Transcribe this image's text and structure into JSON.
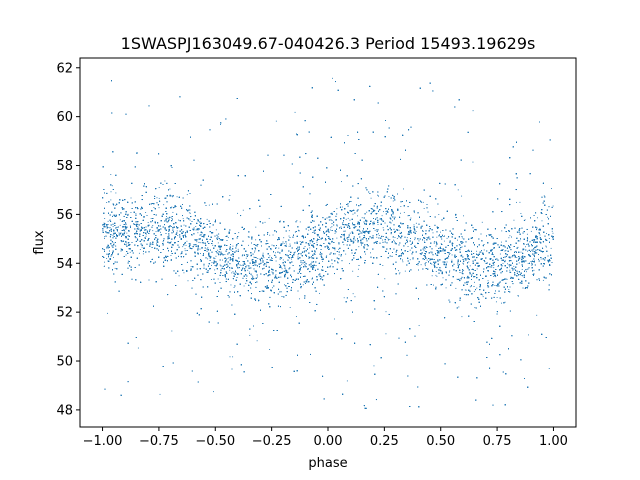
{
  "chart_data": {
    "type": "scatter",
    "title": "1SWASPJ163049.67-040426.3 Period 15493.19629s",
    "xlabel": "phase",
    "ylabel": "flux",
    "xlim": [
      -1.1,
      1.1
    ],
    "ylim": [
      47.3,
      62.4
    ],
    "xticks": [
      -1.0,
      -0.75,
      -0.5,
      -0.25,
      0.0,
      0.25,
      0.5,
      0.75,
      1.0
    ],
    "xtick_labels": [
      "−1.00",
      "−0.75",
      "−0.50",
      "−0.25",
      "0.00",
      "0.25",
      "0.50",
      "0.75",
      "1.00"
    ],
    "yticks": [
      48,
      50,
      52,
      54,
      56,
      58,
      60,
      62
    ],
    "ytick_labels": [
      "48",
      "50",
      "52",
      "54",
      "56",
      "58",
      "60",
      "62"
    ],
    "point_color": "#1f77b4",
    "grid": false,
    "legend": "none",
    "model": {
      "description_of_trend": "sinusoidal, two cycles over phase -1 to 1",
      "mean_flux": 54.65,
      "amplitude": 0.8,
      "minima_phase": [
        -0.3,
        0.7
      ],
      "maxima_phase": [
        -0.8,
        0.2
      ],
      "band_core_sigma": 0.75,
      "outlier_range": [
        47.9,
        61.6
      ],
      "n_points": 26000
    }
  }
}
